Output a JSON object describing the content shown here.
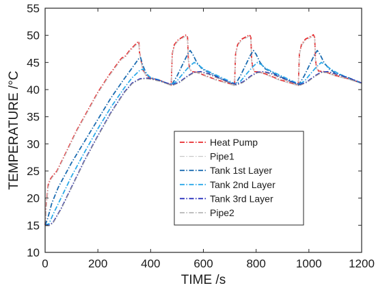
{
  "chart_data": {
    "type": "line",
    "xlabel": "TIME /s",
    "ylabel": "TEMPERATURE /°C",
    "xlim": [
      0,
      1200
    ],
    "ylim": [
      10,
      55
    ],
    "xticks": [
      "0",
      "200",
      "400",
      "600",
      "800",
      "1000",
      "1200"
    ],
    "yticks": [
      "10",
      "15",
      "20",
      "25",
      "30",
      "35",
      "40",
      "45",
      "50",
      "55"
    ],
    "grid": false,
    "legend_position": "inside-right",
    "series": [
      {
        "name": "Heat Pump",
        "color": "#e8282b",
        "style": "dash-dot",
        "points": [
          [
            0,
            15
          ],
          [
            5,
            19
          ],
          [
            12,
            22.5
          ],
          [
            20,
            23.5
          ],
          [
            30,
            24.2
          ],
          [
            45,
            25
          ],
          [
            80,
            28.5
          ],
          [
            120,
            32.5
          ],
          [
            160,
            36
          ],
          [
            200,
            39.5
          ],
          [
            240,
            42.5
          ],
          [
            270,
            44.5
          ],
          [
            290,
            45.8
          ],
          [
            305,
            46.2
          ],
          [
            320,
            47.2
          ],
          [
            340,
            48.2
          ],
          [
            355,
            48.9
          ],
          [
            358,
            46.8
          ],
          [
            365,
            45
          ],
          [
            372,
            43.5
          ],
          [
            385,
            42.5
          ],
          [
            400,
            42.1
          ],
          [
            430,
            41.8
          ],
          [
            460,
            41.2
          ],
          [
            478,
            40.8
          ],
          [
            482,
            46.5
          ],
          [
            490,
            48.3
          ],
          [
            505,
            49.2
          ],
          [
            525,
            49.8
          ],
          [
            535,
            50.1
          ],
          [
            540,
            49.6
          ],
          [
            543,
            45.5
          ],
          [
            547,
            44
          ],
          [
            555,
            43.3
          ],
          [
            575,
            43.2
          ],
          [
            600,
            42.7
          ],
          [
            650,
            41.8
          ],
          [
            700,
            41.1
          ],
          [
            718,
            40.8
          ],
          [
            722,
            46.5
          ],
          [
            730,
            48.3
          ],
          [
            745,
            49.3
          ],
          [
            765,
            49.8
          ],
          [
            775,
            50.1
          ],
          [
            780,
            49.6
          ],
          [
            783,
            45.5
          ],
          [
            787,
            44
          ],
          [
            795,
            43.3
          ],
          [
            815,
            43.2
          ],
          [
            840,
            42.8
          ],
          [
            890,
            41.8
          ],
          [
            940,
            41.1
          ],
          [
            960,
            40.8
          ],
          [
            964,
            46.5
          ],
          [
            972,
            48.3
          ],
          [
            987,
            49.3
          ],
          [
            1007,
            49.8
          ],
          [
            1017,
            50.1
          ],
          [
            1022,
            49.6
          ],
          [
            1025,
            45.5
          ],
          [
            1029,
            44
          ],
          [
            1037,
            43.4
          ],
          [
            1060,
            43.3
          ],
          [
            1100,
            42.6
          ],
          [
            1150,
            42
          ],
          [
            1200,
            41.2
          ]
        ]
      },
      {
        "name": "Pipe1",
        "color": "#c8c8c8",
        "style": "dash-dot",
        "points": [
          [
            0,
            15
          ],
          [
            5,
            18.5
          ],
          [
            12,
            22
          ],
          [
            20,
            23.3
          ],
          [
            30,
            24
          ],
          [
            45,
            24.8
          ],
          [
            80,
            28.3
          ],
          [
            120,
            32.3
          ],
          [
            160,
            35.8
          ],
          [
            200,
            39.3
          ],
          [
            240,
            42.3
          ],
          [
            270,
            44.3
          ],
          [
            290,
            45.6
          ],
          [
            305,
            46
          ],
          [
            320,
            47
          ],
          [
            340,
            48
          ],
          [
            355,
            48.7
          ],
          [
            358,
            46.6
          ],
          [
            365,
            44.8
          ],
          [
            372,
            43.4
          ],
          [
            385,
            42.4
          ],
          [
            400,
            42
          ],
          [
            430,
            41.7
          ],
          [
            460,
            41.1
          ],
          [
            478,
            40.7
          ],
          [
            482,
            46.3
          ],
          [
            490,
            48.1
          ],
          [
            505,
            49
          ],
          [
            525,
            49.6
          ],
          [
            535,
            49.9
          ],
          [
            540,
            49.4
          ],
          [
            543,
            45.3
          ],
          [
            547,
            43.9
          ],
          [
            555,
            43.2
          ],
          [
            575,
            43.1
          ],
          [
            600,
            42.6
          ],
          [
            650,
            41.7
          ],
          [
            700,
            41
          ],
          [
            718,
            40.7
          ],
          [
            722,
            46.3
          ],
          [
            730,
            48.1
          ],
          [
            745,
            49.1
          ],
          [
            765,
            49.6
          ],
          [
            775,
            49.9
          ],
          [
            780,
            49.4
          ],
          [
            783,
            45.3
          ],
          [
            787,
            43.9
          ],
          [
            795,
            43.2
          ],
          [
            815,
            43.1
          ],
          [
            840,
            42.7
          ],
          [
            890,
            41.7
          ],
          [
            940,
            41
          ],
          [
            960,
            40.7
          ],
          [
            964,
            46.3
          ],
          [
            972,
            48.1
          ],
          [
            987,
            49.1
          ],
          [
            1007,
            49.6
          ],
          [
            1017,
            49.9
          ],
          [
            1022,
            49.4
          ],
          [
            1025,
            45.3
          ],
          [
            1029,
            43.9
          ],
          [
            1037,
            43.3
          ],
          [
            1060,
            43.2
          ],
          [
            1100,
            42.5
          ],
          [
            1150,
            41.9
          ],
          [
            1200,
            41.1
          ]
        ]
      },
      {
        "name": "Tank 1st Layer",
        "color": "#1a6bb0",
        "style": "dash-dot",
        "points": [
          [
            0,
            15
          ],
          [
            10,
            16.3
          ],
          [
            25,
            19
          ],
          [
            50,
            22
          ],
          [
            100,
            26.5
          ],
          [
            150,
            30.5
          ],
          [
            200,
            34.5
          ],
          [
            250,
            38.5
          ],
          [
            300,
            42
          ],
          [
            330,
            44
          ],
          [
            355,
            45.7
          ],
          [
            362,
            45.9
          ],
          [
            370,
            44.5
          ],
          [
            385,
            42.8
          ],
          [
            400,
            42.2
          ],
          [
            430,
            41.8
          ],
          [
            460,
            41.2
          ],
          [
            480,
            40.9
          ],
          [
            500,
            42.5
          ],
          [
            520,
            44.5
          ],
          [
            540,
            46.5
          ],
          [
            550,
            47.2
          ],
          [
            560,
            46.5
          ],
          [
            575,
            45
          ],
          [
            595,
            43.8
          ],
          [
            620,
            43.2
          ],
          [
            660,
            42.2
          ],
          [
            700,
            41.3
          ],
          [
            720,
            40.9
          ],
          [
            740,
            42.5
          ],
          [
            760,
            44.5
          ],
          [
            780,
            46.5
          ],
          [
            790,
            47.2
          ],
          [
            800,
            46.5
          ],
          [
            815,
            45
          ],
          [
            835,
            43.8
          ],
          [
            860,
            43.2
          ],
          [
            900,
            42.2
          ],
          [
            940,
            41.3
          ],
          [
            962,
            40.9
          ],
          [
            982,
            42.5
          ],
          [
            1002,
            44.5
          ],
          [
            1022,
            46.5
          ],
          [
            1032,
            47.2
          ],
          [
            1042,
            46.5
          ],
          [
            1057,
            45
          ],
          [
            1077,
            43.8
          ],
          [
            1100,
            43.1
          ],
          [
            1150,
            42.2
          ],
          [
            1200,
            41.2
          ]
        ]
      },
      {
        "name": "Tank 2nd Layer",
        "color": "#2aa8e8",
        "style": "dash-dot",
        "points": [
          [
            0,
            15
          ],
          [
            15,
            15.3
          ],
          [
            30,
            17
          ],
          [
            60,
            20
          ],
          [
            100,
            24
          ],
          [
            150,
            28.5
          ],
          [
            200,
            32.8
          ],
          [
            250,
            36.8
          ],
          [
            300,
            40.3
          ],
          [
            330,
            42.2
          ],
          [
            360,
            43.6
          ],
          [
            372,
            43.8
          ],
          [
            385,
            42.9
          ],
          [
            400,
            42.2
          ],
          [
            430,
            41.8
          ],
          [
            460,
            41.2
          ],
          [
            480,
            40.9
          ],
          [
            500,
            41.6
          ],
          [
            520,
            42.8
          ],
          [
            545,
            44.2
          ],
          [
            565,
            45
          ],
          [
            580,
            44.6
          ],
          [
            600,
            43.8
          ],
          [
            630,
            43.1
          ],
          [
            670,
            42.2
          ],
          [
            710,
            41.3
          ],
          [
            722,
            41
          ],
          [
            742,
            41.6
          ],
          [
            762,
            42.8
          ],
          [
            787,
            44.2
          ],
          [
            805,
            45
          ],
          [
            820,
            44.6
          ],
          [
            840,
            43.8
          ],
          [
            870,
            43.1
          ],
          [
            910,
            42.2
          ],
          [
            950,
            41.3
          ],
          [
            964,
            41
          ],
          [
            984,
            41.6
          ],
          [
            1004,
            42.8
          ],
          [
            1029,
            44.2
          ],
          [
            1047,
            45
          ],
          [
            1062,
            44.6
          ],
          [
            1082,
            43.8
          ],
          [
            1110,
            43
          ],
          [
            1150,
            42.1
          ],
          [
            1200,
            41.2
          ]
        ]
      },
      {
        "name": "Tank 3rd Layer",
        "color": "#1a22b8",
        "style": "dash-dot",
        "points": [
          [
            0,
            15
          ],
          [
            15,
            15
          ],
          [
            30,
            15.5
          ],
          [
            60,
            18
          ],
          [
            100,
            22
          ],
          [
            150,
            27
          ],
          [
            200,
            31.5
          ],
          [
            250,
            35.8
          ],
          [
            300,
            39.5
          ],
          [
            330,
            41.2
          ],
          [
            360,
            42
          ],
          [
            385,
            42.1
          ],
          [
            400,
            42
          ],
          [
            430,
            41.7
          ],
          [
            460,
            41.2
          ],
          [
            485,
            40.9
          ],
          [
            510,
            41.4
          ],
          [
            540,
            42.5
          ],
          [
            565,
            43.2
          ],
          [
            590,
            43.3
          ],
          [
            620,
            42.9
          ],
          [
            660,
            42.1
          ],
          [
            700,
            41.3
          ],
          [
            725,
            40.9
          ],
          [
            750,
            41.4
          ],
          [
            780,
            42.5
          ],
          [
            805,
            43.2
          ],
          [
            830,
            43.3
          ],
          [
            860,
            42.9
          ],
          [
            900,
            42.1
          ],
          [
            940,
            41.3
          ],
          [
            967,
            40.9
          ],
          [
            992,
            41.4
          ],
          [
            1022,
            42.5
          ],
          [
            1047,
            43.2
          ],
          [
            1072,
            43.3
          ],
          [
            1100,
            42.9
          ],
          [
            1150,
            42.1
          ],
          [
            1200,
            41.2
          ]
        ]
      },
      {
        "name": "Pipe2",
        "color": "#999999",
        "style": "dash-dot",
        "points": [
          [
            0,
            14.9
          ],
          [
            15,
            14.9
          ],
          [
            30,
            15.4
          ],
          [
            60,
            17.9
          ],
          [
            100,
            21.9
          ],
          [
            150,
            26.9
          ],
          [
            200,
            31.4
          ],
          [
            250,
            35.7
          ],
          [
            300,
            39.4
          ],
          [
            330,
            41.1
          ],
          [
            360,
            41.9
          ],
          [
            385,
            42
          ],
          [
            400,
            41.9
          ],
          [
            430,
            41.6
          ],
          [
            460,
            41.1
          ],
          [
            485,
            40.8
          ],
          [
            510,
            41.3
          ],
          [
            540,
            42.4
          ],
          [
            565,
            43.1
          ],
          [
            590,
            43.2
          ],
          [
            620,
            42.8
          ],
          [
            660,
            42
          ],
          [
            700,
            41.2
          ],
          [
            725,
            40.8
          ],
          [
            750,
            41.3
          ],
          [
            780,
            42.4
          ],
          [
            805,
            43.1
          ],
          [
            830,
            43.2
          ],
          [
            860,
            42.8
          ],
          [
            900,
            42
          ],
          [
            940,
            41.2
          ],
          [
            967,
            40.8
          ],
          [
            992,
            41.3
          ],
          [
            1022,
            42.4
          ],
          [
            1047,
            43.1
          ],
          [
            1072,
            43.2
          ],
          [
            1100,
            42.8
          ],
          [
            1150,
            42
          ],
          [
            1200,
            41.1
          ]
        ]
      }
    ]
  }
}
